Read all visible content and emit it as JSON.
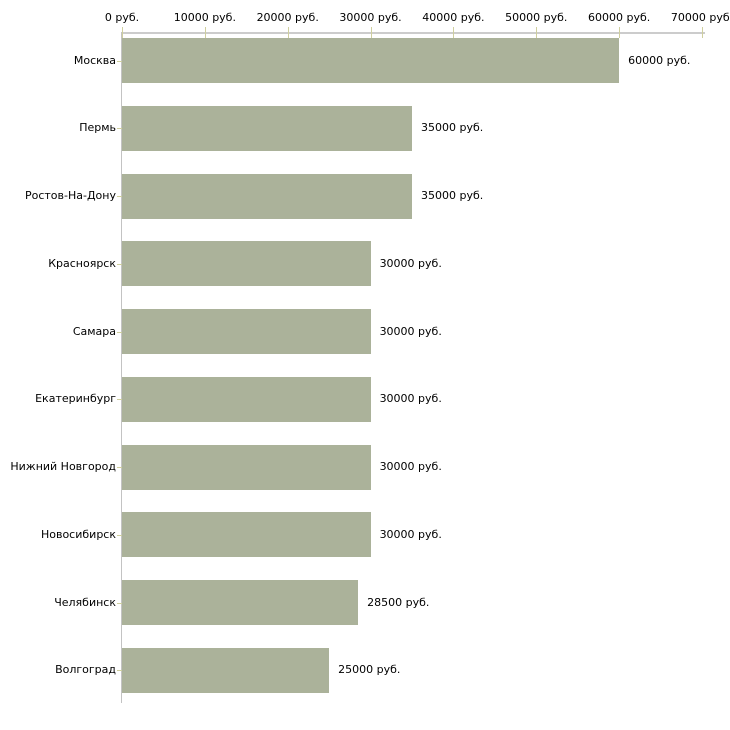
{
  "chart_data": {
    "type": "bar",
    "orientation": "horizontal",
    "title": "",
    "xlabel": "",
    "ylabel": "",
    "categories": [
      "Москва",
      "Пермь",
      "Ростов-На-Дону",
      "Красноярск",
      "Самара",
      "Екатеринбург",
      "Нижний Новгород",
      "Новосибирск",
      "Челябинск",
      "Волгоград"
    ],
    "values": [
      60000,
      35000,
      35000,
      30000,
      30000,
      30000,
      30000,
      30000,
      28500,
      25000
    ],
    "value_labels": [
      "60000 руб.",
      "35000 руб.",
      "35000 руб.",
      "30000 руб.",
      "30000 руб.",
      "30000 руб.",
      "30000 руб.",
      "30000 руб.",
      "28500 руб.",
      "25000 руб."
    ],
    "x_axis": {
      "position": "top",
      "range": [
        0,
        70000
      ],
      "ticks": [
        0,
        10000,
        20000,
        30000,
        40000,
        50000,
        60000,
        70000
      ],
      "tick_labels": [
        "0 руб.",
        "10000 руб.",
        "20000 руб.",
        "30000 руб.",
        "40000 руб.",
        "50000 руб.",
        "60000 руб.",
        "70000 руб."
      ],
      "grid": false
    },
    "legend": null,
    "colors": {
      "bar": "#abb29a",
      "axis_line": "#cccccc",
      "y_axis_line": "#c3c3c3",
      "tick": "#cfcf9e",
      "text": "#000000",
      "background": "#ffffff"
    }
  }
}
